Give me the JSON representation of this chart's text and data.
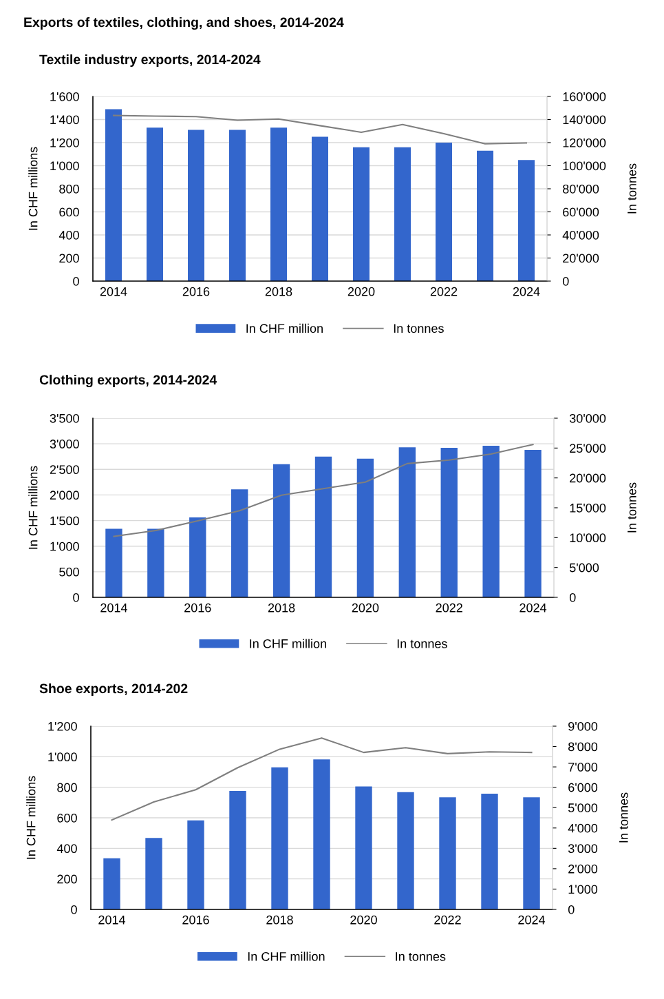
{
  "chart_data": [
    {
      "type": "bar",
      "title": "Exports of textiles, clothing, and shoes, 2014-2024",
      "subtitle": "Textile industry exports, 2014-2024",
      "ylabel": "In CHF millions",
      "y2label": "In tonnes",
      "categories": [
        "2014",
        null,
        "2016",
        null,
        "2018",
        null,
        "2020",
        null,
        "2022",
        null,
        "2024"
      ],
      "series": [
        {
          "name": "In CHF million",
          "color": "#3366cc",
          "values": [
            1490,
            1330,
            1310,
            1310,
            1330,
            1250,
            1160,
            1160,
            1200,
            1130,
            1050
          ]
        },
        {
          "name": "In tonnes",
          "type": "line",
          "axis": "y2",
          "color": "#7f7f7f",
          "values": [
            143500,
            143000,
            142500,
            139400,
            140400,
            134700,
            129000,
            135700,
            127700,
            119000,
            119700
          ]
        }
      ],
      "ylim": [
        0,
        1600
      ],
      "yticks": [
        0,
        200,
        400,
        600,
        800,
        {
          "value": 1000,
          "label": "1'000"
        },
        {
          "value": 1200,
          "label": "1'200"
        },
        {
          "value": 1400,
          "label": "1'400"
        },
        {
          "value": 1600,
          "label": "1'600"
        }
      ],
      "y2lim": [
        0,
        160000
      ],
      "y2ticks": [
        0,
        {
          "value": 20000,
          "label": "20'000"
        },
        {
          "value": 40000,
          "label": "40'000"
        },
        {
          "value": 60000,
          "label": "60'000"
        },
        {
          "value": 80000,
          "label": "80'000"
        },
        {
          "value": 100000,
          "label": "100'000"
        },
        {
          "value": 120000,
          "label": "120'000"
        },
        {
          "value": 140000,
          "label": "140'000"
        },
        {
          "value": 160000,
          "label": "160'000"
        }
      ],
      "grid": "y",
      "legend": "bottom"
    },
    {
      "type": "bar",
      "title": "Clothing exports, 2014-2024",
      "ylabel": "In CHF millions",
      "y2label": "In tonnes",
      "categories": [
        "2014",
        null,
        "2016",
        null,
        "2018",
        null,
        "2020",
        null,
        "2022",
        null,
        "2024"
      ],
      "series": [
        {
          "name": "In CHF million",
          "color": "#3366cc",
          "values": [
            1340,
            1340,
            1560,
            2110,
            2600,
            2750,
            2710,
            2930,
            2920,
            2960,
            2880
          ]
        },
        {
          "name": "In tonnes",
          "type": "line",
          "axis": "y2",
          "color": "#7f7f7f",
          "values": [
            10200,
            11200,
            12800,
            14500,
            17100,
            18200,
            19300,
            22400,
            23000,
            24000,
            25600
          ]
        }
      ],
      "ylim": [
        0,
        3500
      ],
      "yticks": [
        0,
        500,
        {
          "value": 1000,
          "label": "1'000"
        },
        {
          "value": 1500,
          "label": "1'500"
        },
        {
          "value": 2000,
          "label": "2'000"
        },
        {
          "value": 2500,
          "label": "2'500"
        },
        {
          "value": 3000,
          "label": "3'000"
        },
        {
          "value": 3500,
          "label": "3'500"
        }
      ],
      "y2lim": [
        0,
        30000
      ],
      "y2ticks": [
        0,
        {
          "value": 5000,
          "label": "5'000"
        },
        {
          "value": 10000,
          "label": "10'000"
        },
        {
          "value": 15000,
          "label": "15'000"
        },
        {
          "value": 20000,
          "label": "20'000"
        },
        {
          "value": 25000,
          "label": "25'000"
        },
        {
          "value": 30000,
          "label": "30'000"
        }
      ],
      "grid": "y",
      "legend": "bottom"
    },
    {
      "type": "bar",
      "title": "Shoe exports, 2014-202",
      "ylabel": "In CHF millions",
      "y2label": "In tonnes",
      "categories": [
        "2014",
        null,
        "2016",
        null,
        "2018",
        null,
        "2020",
        null,
        "2022",
        null,
        "2024"
      ],
      "series": [
        {
          "name": "In CHF million",
          "color": "#3366cc",
          "values": [
            335,
            468,
            583,
            776,
            930,
            982,
            805,
            768,
            734,
            758,
            734
          ]
        },
        {
          "name": "In tonnes",
          "type": "line",
          "axis": "y2",
          "color": "#7f7f7f",
          "values": [
            4390,
            5280,
            5880,
            6960,
            7870,
            8420,
            7710,
            7940,
            7650,
            7740,
            7710
          ]
        }
      ],
      "ylim": [
        0,
        1200
      ],
      "yticks": [
        0,
        200,
        400,
        600,
        800,
        {
          "value": 1000,
          "label": "1'000"
        },
        {
          "value": 1200,
          "label": "1'200"
        }
      ],
      "y2lim": [
        0,
        9000
      ],
      "y2ticks": [
        0,
        {
          "value": 1000,
          "label": "1'000"
        },
        {
          "value": 2000,
          "label": "2'000"
        },
        {
          "value": 3000,
          "label": "3'000"
        },
        {
          "value": 4000,
          "label": "4'000"
        },
        {
          "value": 5000,
          "label": "5'000"
        },
        {
          "value": 6000,
          "label": "6'000"
        },
        {
          "value": 7000,
          "label": "7'000"
        },
        {
          "value": 8000,
          "label": "8'000"
        },
        {
          "value": 9000,
          "label": "9'000"
        }
      ],
      "grid": "y",
      "legend": "bottom"
    }
  ]
}
